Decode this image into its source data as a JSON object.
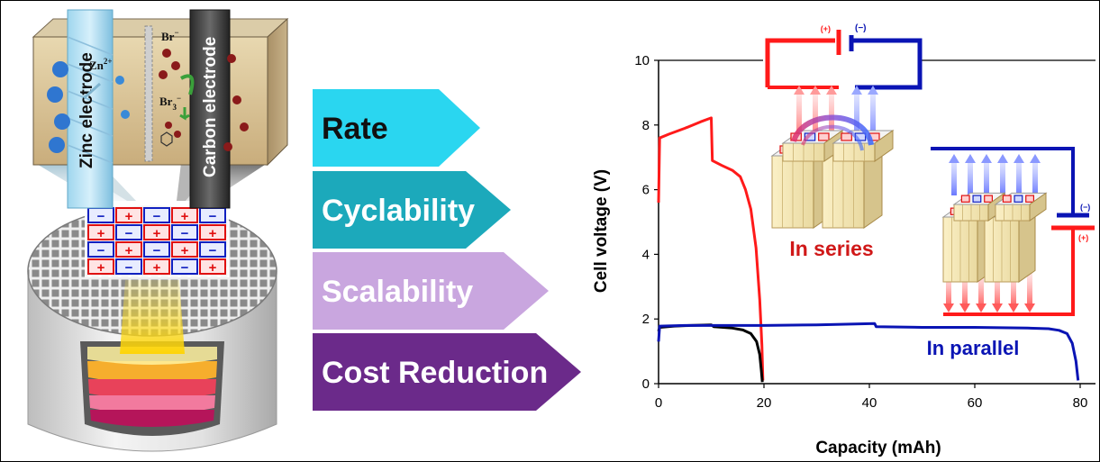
{
  "colors": {
    "rate": "#2ad6f0",
    "cyclability": "#1ca9bb",
    "scalability": "#c9a6df",
    "cost_reduction": "#6b2a8a",
    "series_line": "#ff1a1a",
    "parallel_line": "#0a14b4",
    "single_line": "#000000",
    "positive": "#e01010",
    "negative": "#1020c0"
  },
  "cell": {
    "zinc_label": "Zinc electrode",
    "carbon_label": "Carbon electrode",
    "zn_ion": "Zn",
    "zn_charge": "2+",
    "br_ion": "Br",
    "br_charge": "−",
    "br3_ion": "Br",
    "br3_sub": "3",
    "br3_charge": "−",
    "grid_signs": [
      "+",
      "−"
    ]
  },
  "benefits": [
    {
      "label": "Rate"
    },
    {
      "label": "Cyclability"
    },
    {
      "label": "Scalability"
    },
    {
      "label": "Cost Reduction"
    }
  ],
  "chart_data": {
    "type": "line",
    "xlabel": "Capacity (mAh)",
    "ylabel": "Cell voltage (V)",
    "xlim": [
      0,
      80
    ],
    "ylim": [
      0,
      10
    ],
    "xticks": [
      0,
      20,
      40,
      60,
      80
    ],
    "yticks": [
      0,
      2,
      4,
      6,
      8,
      10
    ],
    "grid": false,
    "series": [
      {
        "name": "In series",
        "color": "series_line",
        "points": [
          [
            0,
            5.6
          ],
          [
            0.2,
            7.6
          ],
          [
            2,
            7.72
          ],
          [
            5,
            7.9
          ],
          [
            8,
            8.1
          ],
          [
            10,
            8.22
          ],
          [
            10.2,
            6.9
          ],
          [
            12,
            6.75
          ],
          [
            14,
            6.6
          ],
          [
            15.5,
            6.4
          ],
          [
            16.5,
            6.0
          ],
          [
            17.5,
            5.4
          ],
          [
            18.5,
            4.2
          ],
          [
            19.2,
            2.6
          ],
          [
            19.6,
            1.2
          ],
          [
            19.8,
            0.1
          ]
        ]
      },
      {
        "name": "",
        "color": "single_line",
        "points": [
          [
            0,
            1.62
          ],
          [
            0.2,
            1.74
          ],
          [
            3,
            1.78
          ],
          [
            6,
            1.8
          ],
          [
            10,
            1.82
          ],
          [
            10.5,
            1.76
          ],
          [
            14,
            1.72
          ],
          [
            16,
            1.66
          ],
          [
            17.5,
            1.55
          ],
          [
            18.6,
            1.3
          ],
          [
            19.2,
            0.9
          ],
          [
            19.5,
            0.4
          ],
          [
            19.7,
            0.05
          ]
        ]
      },
      {
        "name": "In parallel",
        "color": "parallel_line",
        "points": [
          [
            0,
            1.3
          ],
          [
            0.2,
            1.78
          ],
          [
            5,
            1.8
          ],
          [
            12,
            1.8
          ],
          [
            20,
            1.8
          ],
          [
            30,
            1.82
          ],
          [
            41,
            1.86
          ],
          [
            41.3,
            1.76
          ],
          [
            50,
            1.74
          ],
          [
            60,
            1.74
          ],
          [
            70,
            1.72
          ],
          [
            74,
            1.7
          ],
          [
            76,
            1.65
          ],
          [
            77.5,
            1.55
          ],
          [
            78.5,
            1.25
          ],
          [
            79.2,
            0.7
          ],
          [
            79.6,
            0.1
          ]
        ]
      }
    ],
    "annotations": {
      "in_series": "In series",
      "in_parallel": "In parallel",
      "plus_label": "(+)",
      "minus_label": "(−)"
    }
  }
}
